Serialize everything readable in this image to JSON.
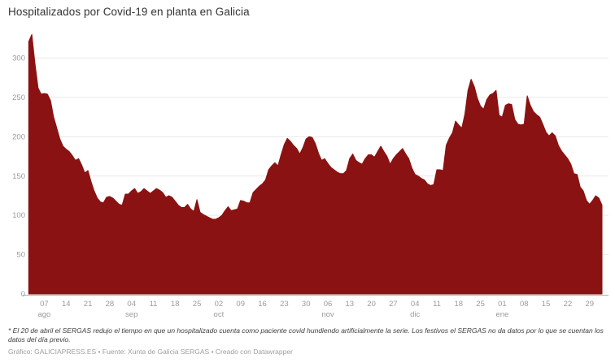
{
  "title": "Hospitalizados por Covid-19 en planta en Galicia",
  "notes": {
    "footnote": "* El 20 de abril el SERGAS redujo el tiempo en que un hospitalizado cuenta como paciente covid hundiendo artificialmente la serie. Los festivos el SERGAS no da datos por lo que se cuentan los datos del día previo.",
    "credit": "Gráfico: GALICIAPRESS.ES • Fuente: Xunta de Galicia SERGAS • Creado con Datawrapper"
  },
  "chart_data": {
    "type": "area",
    "title": "Hospitalizados por Covid-19 en planta en Galicia",
    "series_name": "Hospitalizados por Covid-19 en planta",
    "fill_color": "#8a1212",
    "grid_color": "#e9e9e9",
    "axis_color": "#b0b0b0",
    "label_color": "#9b9b9b",
    "grid": true,
    "legend": "none",
    "xlabel": "",
    "ylabel": "",
    "ylim": [
      0,
      340
    ],
    "y_ticks": [
      0,
      50,
      100,
      150,
      200,
      250,
      300
    ],
    "x_ticks": [
      {
        "day": "07",
        "month": "ago",
        "i": 5
      },
      {
        "day": "14",
        "i": 12
      },
      {
        "day": "21",
        "i": 19
      },
      {
        "day": "28",
        "i": 26
      },
      {
        "day": "04",
        "month": "sep",
        "i": 33
      },
      {
        "day": "11",
        "i": 40
      },
      {
        "day": "18",
        "i": 47
      },
      {
        "day": "25",
        "i": 54
      },
      {
        "day": "02",
        "month": "oct",
        "i": 61
      },
      {
        "day": "09",
        "i": 68
      },
      {
        "day": "16",
        "i": 75
      },
      {
        "day": "23",
        "i": 82
      },
      {
        "day": "30",
        "i": 89
      },
      {
        "day": "06",
        "month": "nov",
        "i": 96
      },
      {
        "day": "13",
        "i": 103
      },
      {
        "day": "20",
        "i": 110
      },
      {
        "day": "27",
        "i": 117
      },
      {
        "day": "04",
        "month": "dic",
        "i": 124
      },
      {
        "day": "11",
        "i": 131
      },
      {
        "day": "18",
        "i": 138
      },
      {
        "day": "25",
        "i": 145
      },
      {
        "day": "01",
        "month": "ene",
        "i": 152
      },
      {
        "day": "08",
        "i": 159
      },
      {
        "day": "15",
        "i": 166
      },
      {
        "day": "22",
        "i": 173
      },
      {
        "day": "29",
        "i": 180
      }
    ],
    "values": [
      321,
      330,
      293,
      262,
      254,
      255,
      254,
      246,
      225,
      211,
      197,
      188,
      184,
      181,
      176,
      170,
      172,
      164,
      154,
      157,
      143,
      131,
      122,
      117,
      116,
      123,
      124,
      122,
      118,
      114,
      113,
      127,
      127,
      131,
      134,
      128,
      130,
      134,
      131,
      128,
      131,
      134,
      132,
      129,
      123,
      125,
      123,
      118,
      113,
      110,
      110,
      114,
      108,
      105,
      120,
      104,
      101,
      99,
      97,
      95,
      95,
      97,
      100,
      106,
      111,
      106,
      107,
      108,
      119,
      118,
      116,
      116,
      129,
      133,
      137,
      140,
      145,
      158,
      163,
      167,
      163,
      177,
      190,
      198,
      194,
      189,
      185,
      178,
      186,
      197,
      200,
      199,
      191,
      179,
      170,
      172,
      166,
      161,
      158,
      155,
      153,
      153,
      157,
      172,
      178,
      170,
      167,
      165,
      172,
      177,
      177,
      174,
      181,
      188,
      181,
      175,
      165,
      172,
      177,
      181,
      185,
      178,
      172,
      160,
      152,
      150,
      147,
      145,
      140,
      138,
      139,
      158,
      158,
      157,
      189,
      198,
      205,
      220,
      215,
      211,
      229,
      259,
      273,
      264,
      249,
      239,
      235,
      247,
      253,
      255,
      259,
      227,
      225,
      240,
      242,
      241,
      222,
      216,
      215,
      216,
      252,
      240,
      232,
      228,
      225,
      216,
      206,
      201,
      205,
      201,
      189,
      182,
      177,
      172,
      165,
      153,
      152,
      136,
      131,
      119,
      114,
      119,
      125,
      122,
      113
    ]
  }
}
